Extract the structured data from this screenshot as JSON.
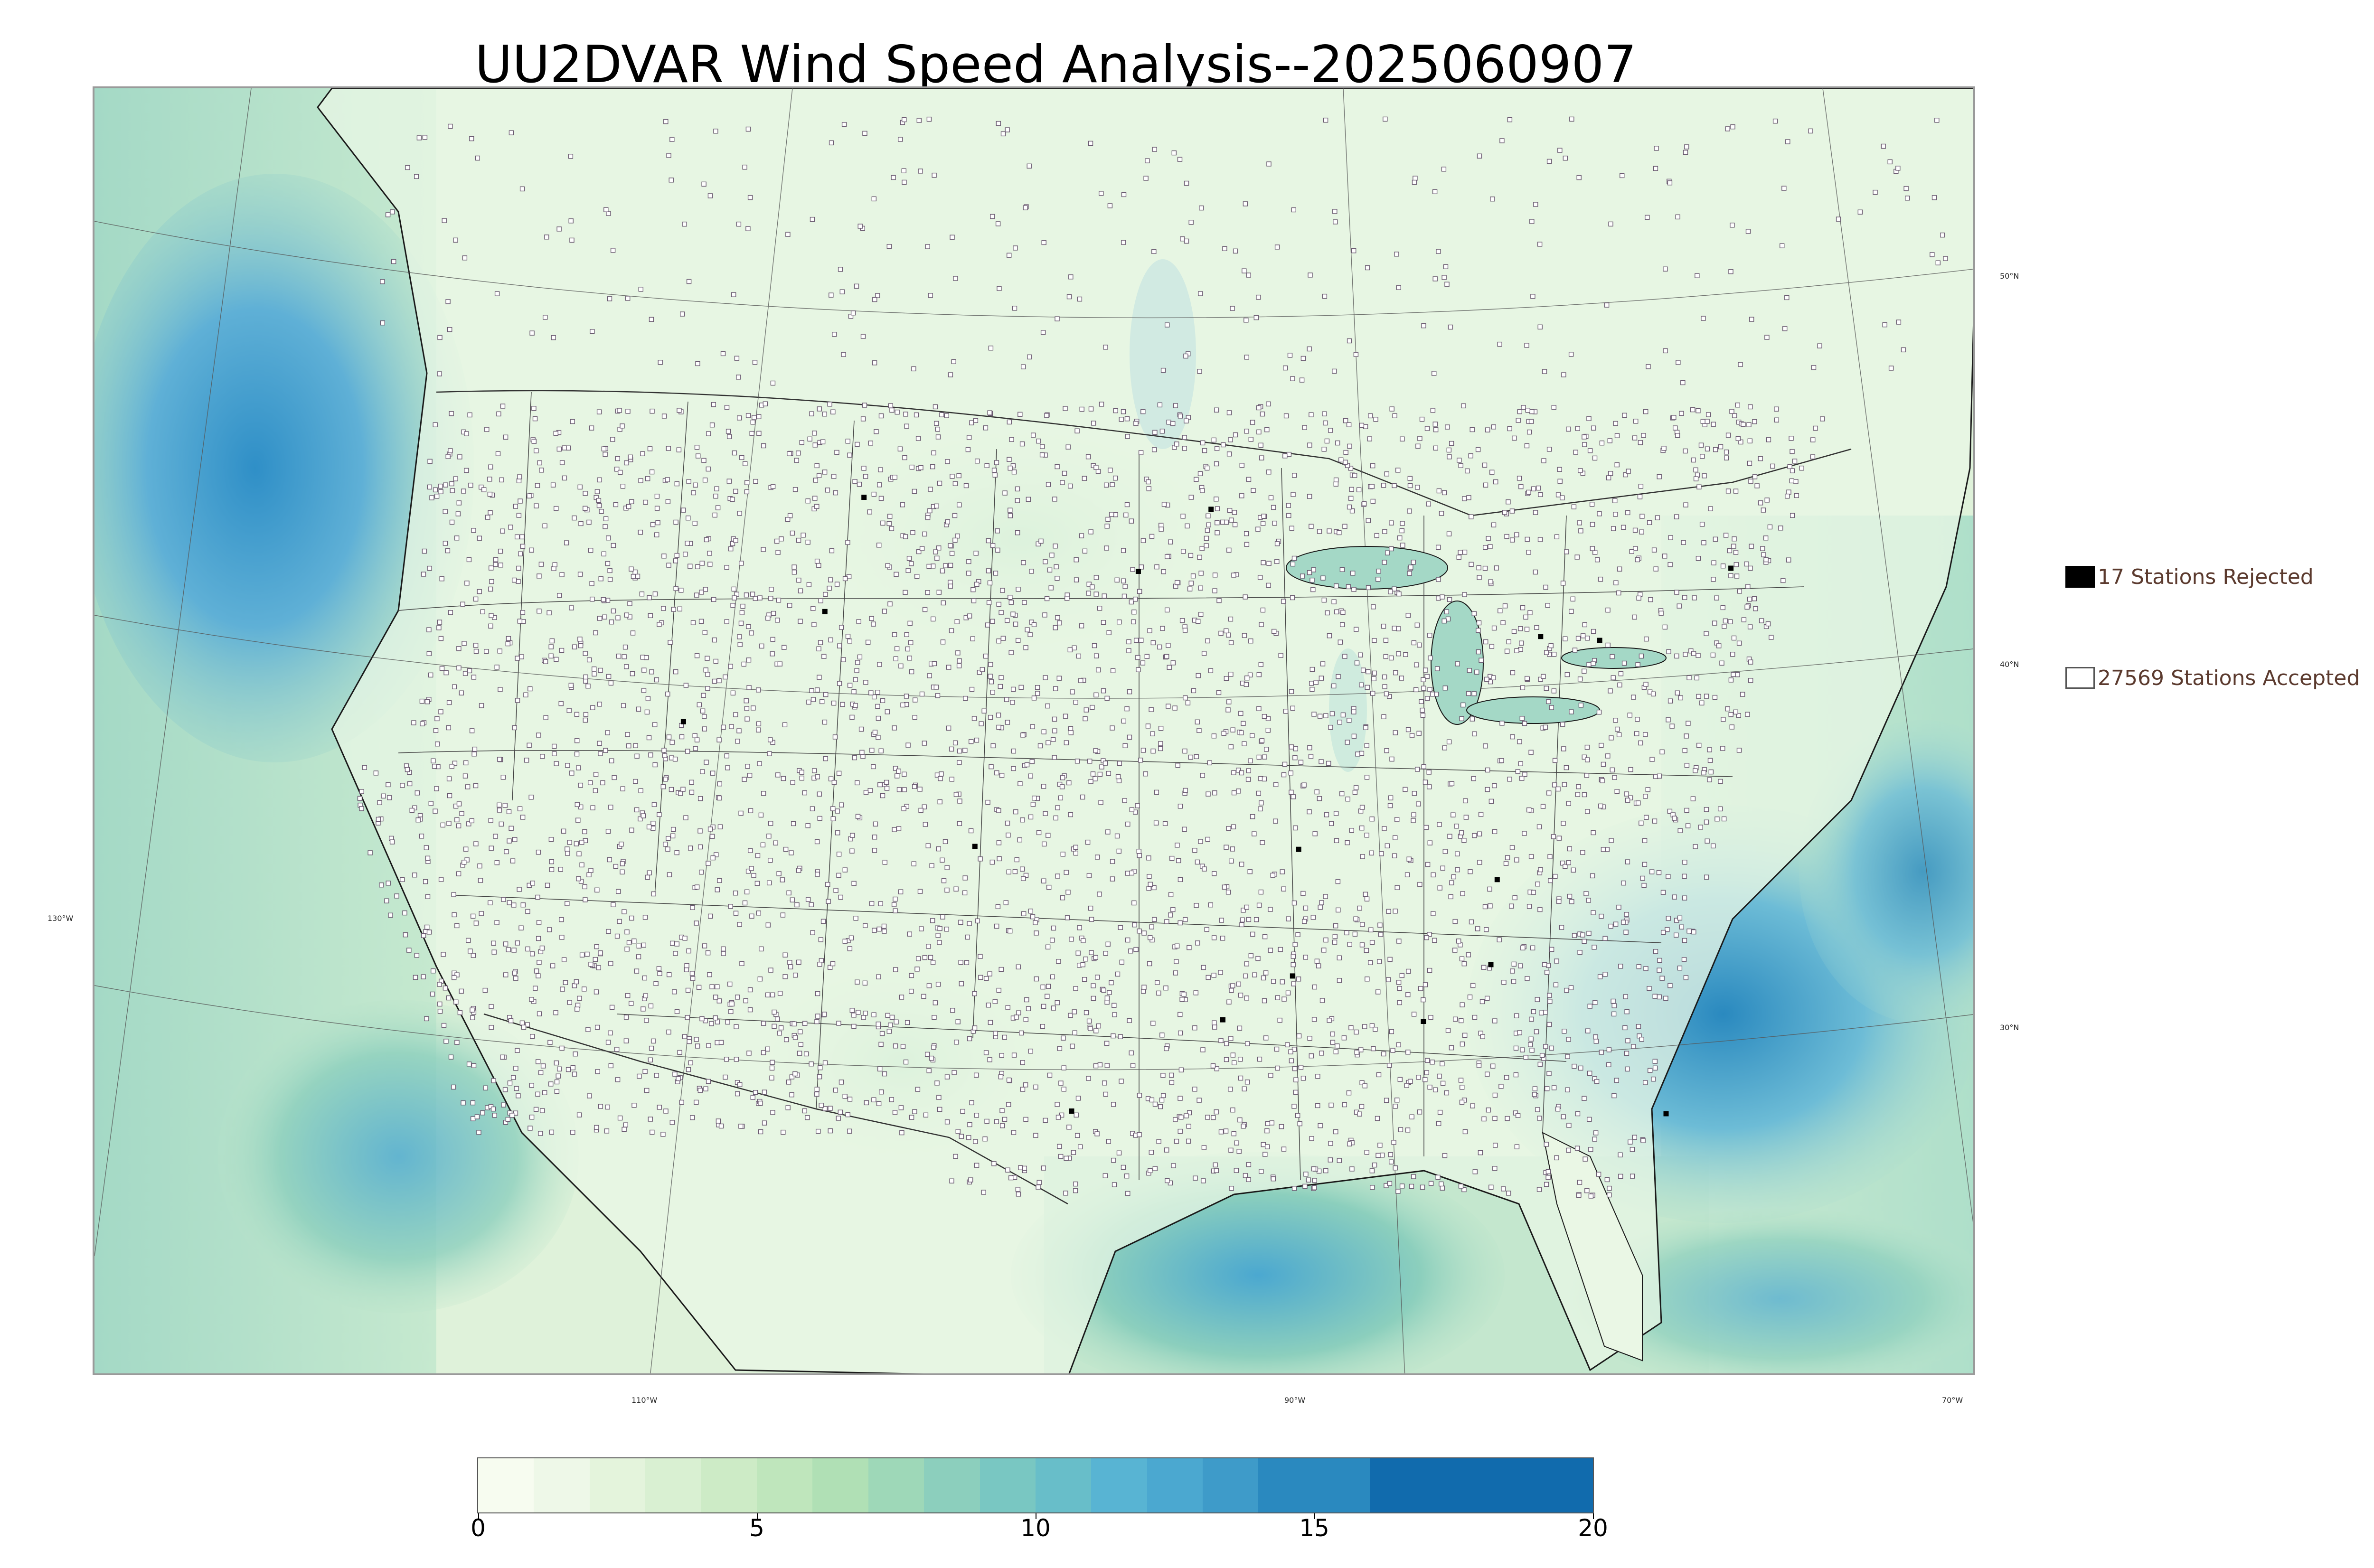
{
  "title": "UU2DVAR Wind Speed Analysis--2025060907",
  "graticule_labels": {
    "lon_130": "130°W",
    "lon_110": "110°W",
    "lon_90": "90°W",
    "lon_70": "70°W",
    "lat_50": "50°N",
    "lat_40": "40°N",
    "lat_30": "30°N"
  },
  "legend": {
    "rejected_label": "17 Stations Rejected",
    "accepted_label": "27569 Stations Accepted"
  },
  "colorbar": {
    "min": 0,
    "max": 20,
    "tick_labels": [
      "0",
      "5",
      "10",
      "15",
      "20"
    ],
    "levels": [
      0,
      1,
      2,
      3,
      4,
      5,
      6,
      7,
      8,
      9,
      10,
      11,
      12,
      13,
      14,
      16,
      20
    ],
    "colors": [
      "#f7fcf0",
      "#eef8e8",
      "#e4f4dc",
      "#d9f0d2",
      "#cdebc6",
      "#bfe6bc",
      "#b0e0b5",
      "#9ed8b8",
      "#8ccfbd",
      "#79c7c2",
      "#68bec9",
      "#58b4d3",
      "#4ba8d0",
      "#3e9bc9",
      "#2a89bf",
      "#116bad"
    ]
  },
  "stations": {
    "rejected_count": 17,
    "accepted_count": 27569
  },
  "colors": {
    "land": "#e9f6e4",
    "ocean_calm": "#c9ead0",
    "ocean_windy": "#5fb0d6",
    "high_wind": "#2f8fc7",
    "boundary_lines": "#333333",
    "legend_text": "#5b3a2e"
  }
}
